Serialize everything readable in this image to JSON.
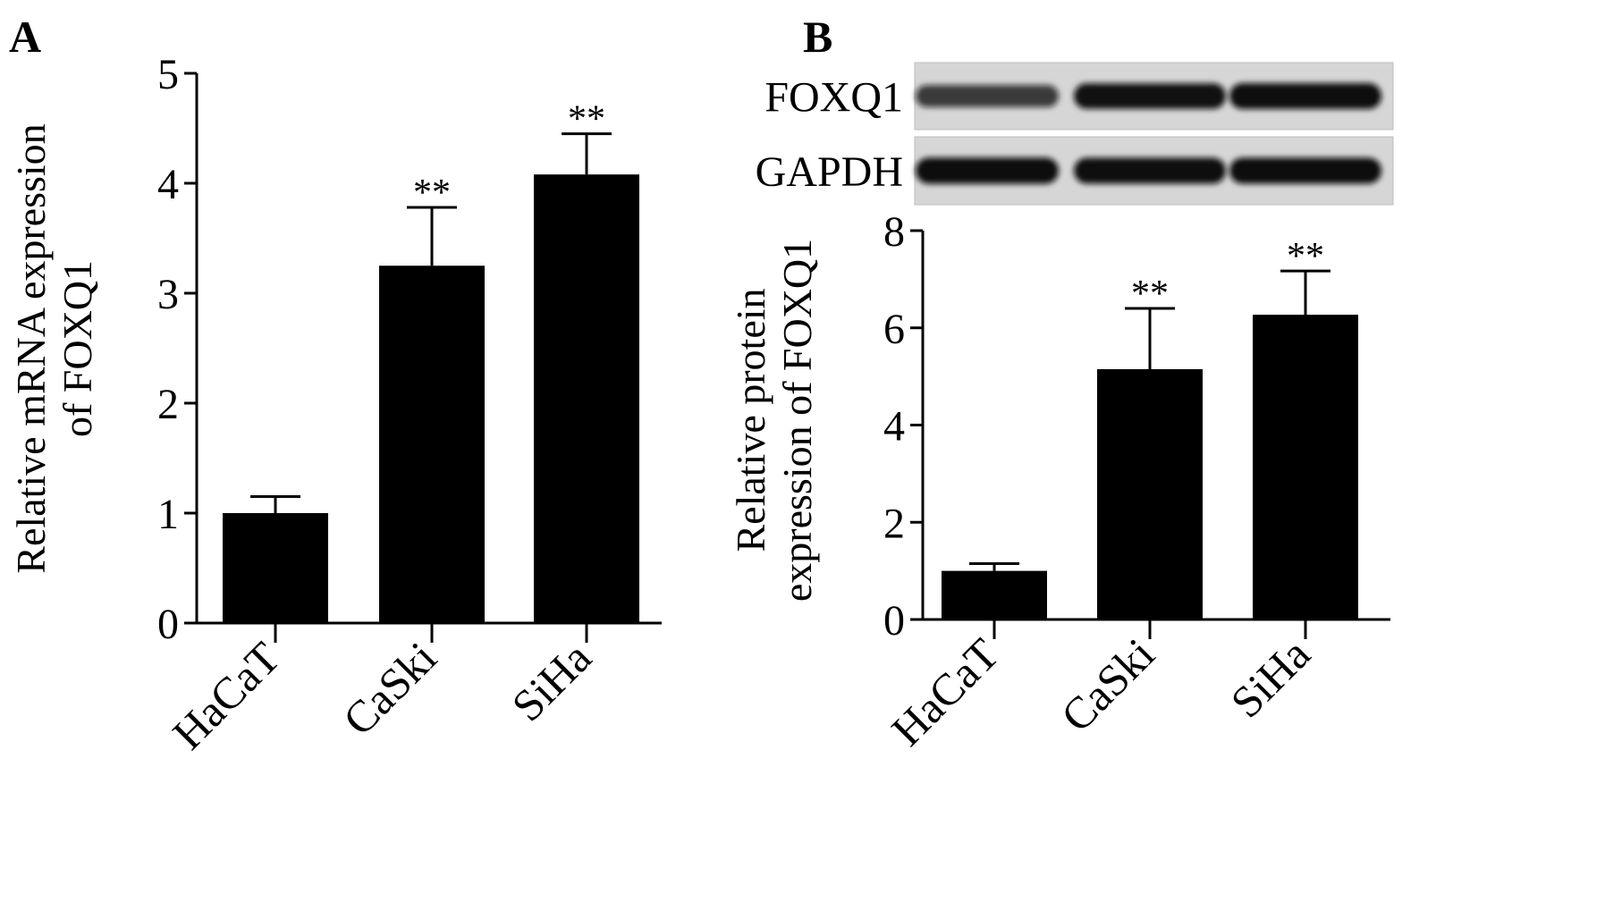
{
  "chart_data": [
    {
      "panel_label": "A",
      "type": "bar",
      "ylabel_lines": [
        "Relative mRNA expression",
        "of FOXQ1"
      ],
      "categories": [
        "HaCaT",
        "CaSki",
        "SiHa"
      ],
      "values": [
        1.0,
        3.25,
        4.08
      ],
      "errors": [
        0.15,
        0.53,
        0.37
      ],
      "significance": [
        "",
        "**",
        "**"
      ],
      "ylim": [
        0,
        5
      ],
      "yticks": [
        0,
        1,
        2,
        3,
        4,
        5
      ],
      "colors": {
        "bar": "#000000"
      }
    },
    {
      "panel_label": "B",
      "type": "bar",
      "ylabel_lines": [
        "Relative protein",
        "expression of FOXQ1"
      ],
      "categories": [
        "HaCaT",
        "CaSki",
        "SiHa"
      ],
      "values": [
        1.0,
        5.15,
        6.27
      ],
      "errors": [
        0.15,
        1.25,
        0.9
      ],
      "significance": [
        "",
        "**",
        "**"
      ],
      "ylim": [
        0,
        8
      ],
      "yticks": [
        0,
        2,
        4,
        6,
        8
      ],
      "colors": {
        "bar": "#000000"
      }
    }
  ],
  "blot": {
    "rows": [
      {
        "label": "FOXQ1",
        "intensity": [
          0.62,
          0.9,
          0.92
        ]
      },
      {
        "label": "GAPDH",
        "intensity": [
          0.95,
          0.92,
          0.93
        ]
      }
    ],
    "colors": {
      "membrane": "#d6d6d6",
      "band": "#111111"
    }
  }
}
